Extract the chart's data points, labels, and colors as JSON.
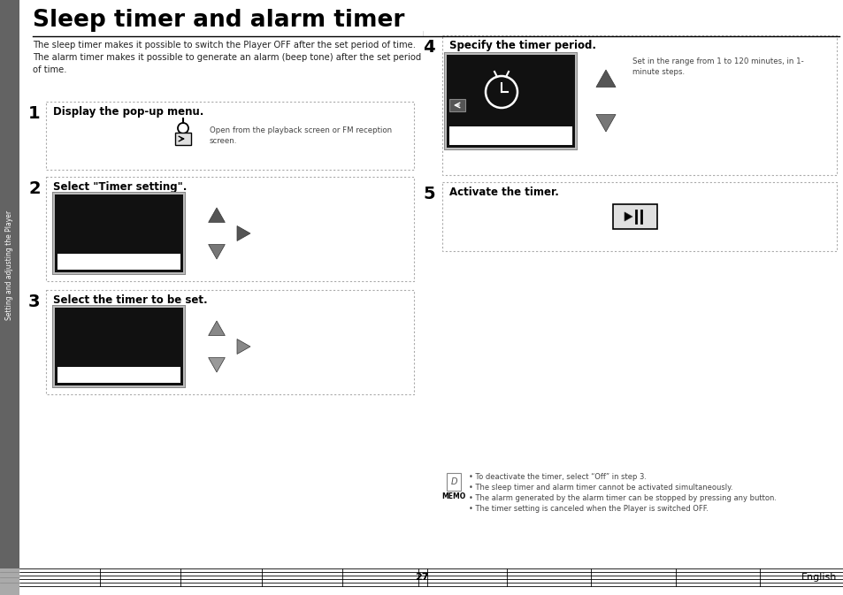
{
  "title": "Sleep timer and alarm timer",
  "sidebar_text": "Setting and adjusting the Player",
  "sidebar_bg": "#636363",
  "page_bg": "#d0d0d0",
  "intro_text": "The sleep timer makes it possible to switch the Player OFF after the set period of time.\nThe alarm timer makes it possible to generate an alarm (beep tone) after the set period\nof time.",
  "step1_title": "Display the pop-up menu.",
  "step1_note": "Open from the playback screen or FM reception\nscreen.",
  "step2_title": "Select \"Timer setting\".",
  "step3_title": "Select the timer to be set.",
  "step4_title": "Specify the timer period.",
  "step4_note": "Set in the range from 1 to 120 minutes, in 1-\nminute steps.",
  "step5_title": "Activate the timer.",
  "memo_bullets": [
    "• To deactivate the timer, select “Off” in step 3.",
    "• The sleep timer and alarm timer cannot be activated simultaneously.",
    "• The alarm generated by the alarm timer can be stopped by pressing any button.",
    "• The timer setting is canceled when the Player is switched OFF."
  ],
  "page_number": "27",
  "page_label": "English",
  "dot_color": "#999999",
  "text_color": "#222222",
  "small_text_color": "#444444"
}
